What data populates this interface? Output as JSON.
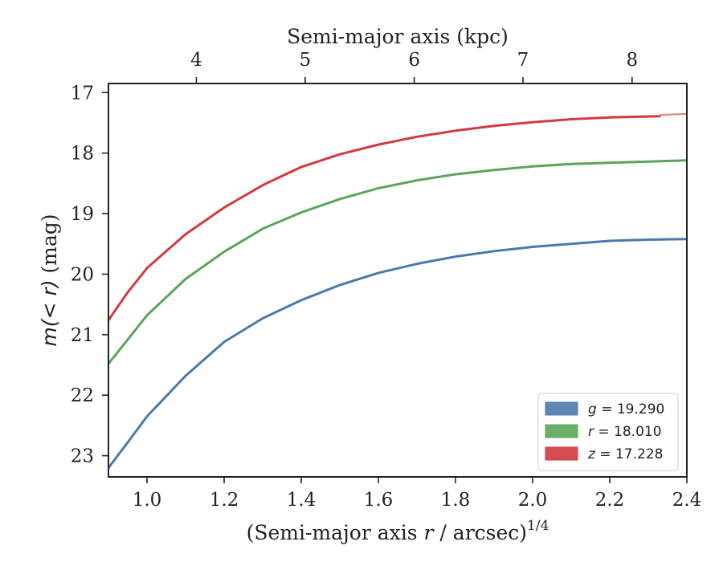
{
  "chart_data": {
    "type": "line",
    "xlabel": "(Semi-major axis r / arcsec)^{1/4}",
    "xlabel_parts": {
      "pre": "(Semi-major axis ",
      "var": "r",
      "post": " / arcsec)",
      "sup": "1/4"
    },
    "ylabel": "m(<r) (mag)",
    "ylabel_parts": {
      "math": "m(< r)",
      "post": " (mag)"
    },
    "top_xlabel": "Semi-major axis (kpc)",
    "xlim": [
      0.9,
      2.4
    ],
    "ylim": [
      23.35,
      16.85
    ],
    "y_inverted": true,
    "x_ticks": [
      "1.0",
      "1.2",
      "1.4",
      "1.6",
      "1.8",
      "2.0",
      "2.2",
      "2.4"
    ],
    "y_ticks": [
      "17",
      "18",
      "19",
      "20",
      "21",
      "22",
      "23"
    ],
    "top_x_ticks": [
      {
        "label": "4",
        "x": 1.128
      },
      {
        "label": "5",
        "x": 1.41
      },
      {
        "label": "6",
        "x": 1.693
      },
      {
        "label": "7",
        "x": 1.975
      },
      {
        "label": "8",
        "x": 2.258
      }
    ],
    "grid": false,
    "legend_position": "lower-right",
    "series": [
      {
        "name": "g = 19.290",
        "color": "#4a7aab",
        "x": [
          0.9,
          0.95,
          1.0,
          1.1,
          1.2,
          1.3,
          1.4,
          1.5,
          1.6,
          1.7,
          1.8,
          1.9,
          2.0,
          2.1,
          2.2,
          2.3,
          2.4
        ],
        "y": [
          23.2,
          22.78,
          22.35,
          21.68,
          21.12,
          20.73,
          20.43,
          20.18,
          19.98,
          19.83,
          19.71,
          19.62,
          19.55,
          19.5,
          19.45,
          19.43,
          19.42
        ]
      },
      {
        "name": "r = 18.010",
        "color": "#5aa55a",
        "x": [
          0.9,
          0.95,
          1.0,
          1.1,
          1.2,
          1.3,
          1.4,
          1.5,
          1.6,
          1.7,
          1.8,
          1.9,
          2.0,
          2.1,
          2.2,
          2.3,
          2.4
        ],
        "y": [
          21.48,
          21.08,
          20.68,
          20.08,
          19.63,
          19.25,
          18.98,
          18.76,
          18.58,
          18.45,
          18.35,
          18.28,
          18.22,
          18.18,
          18.16,
          18.14,
          18.12
        ]
      },
      {
        "name": "z = 17.228",
        "color": "#d13a3e",
        "x": [
          0.9,
          0.95,
          1.0,
          1.1,
          1.2,
          1.3,
          1.4,
          1.5,
          1.6,
          1.7,
          1.8,
          1.9,
          2.0,
          2.1,
          2.2,
          2.33
        ],
        "y": [
          20.76,
          20.3,
          19.9,
          19.34,
          18.9,
          18.53,
          18.23,
          18.02,
          17.86,
          17.73,
          17.63,
          17.55,
          17.49,
          17.44,
          17.41,
          17.39
        ]
      }
    ],
    "extension": {
      "color": "#e87b7b",
      "x": [
        2.33,
        2.4
      ],
      "y": [
        17.37,
        17.35
      ]
    },
    "legend": [
      {
        "name_var": "g",
        "value": " = 19.290",
        "color": "#4a7aab"
      },
      {
        "name_var": "r",
        "value": " = 18.010",
        "color": "#5aa55a"
      },
      {
        "name_var": "z",
        "value": " = 17.228",
        "color": "#d13a3e"
      }
    ]
  }
}
